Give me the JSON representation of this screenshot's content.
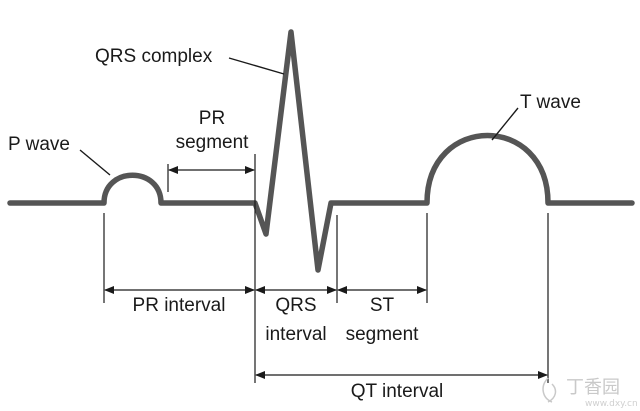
{
  "labels": {
    "qrs_complex": "QRS complex",
    "p_wave": "P wave",
    "pr_segment_line1": "PR",
    "pr_segment_line2": "segment",
    "t_wave": "T wave",
    "pr_interval": "PR interval",
    "qrs_interval_line1": "QRS",
    "qrs_interval_line2": "interval",
    "st_segment_line1": "ST",
    "st_segment_line2": "segment",
    "qt_interval": "QT interval"
  },
  "watermark": {
    "brand": "丁香园",
    "url": "www.dxy.cn"
  },
  "colors": {
    "waveform": "#555555",
    "text": "#1a1a1a",
    "background": "#ffffff",
    "watermark": "#c9c9c9"
  }
}
